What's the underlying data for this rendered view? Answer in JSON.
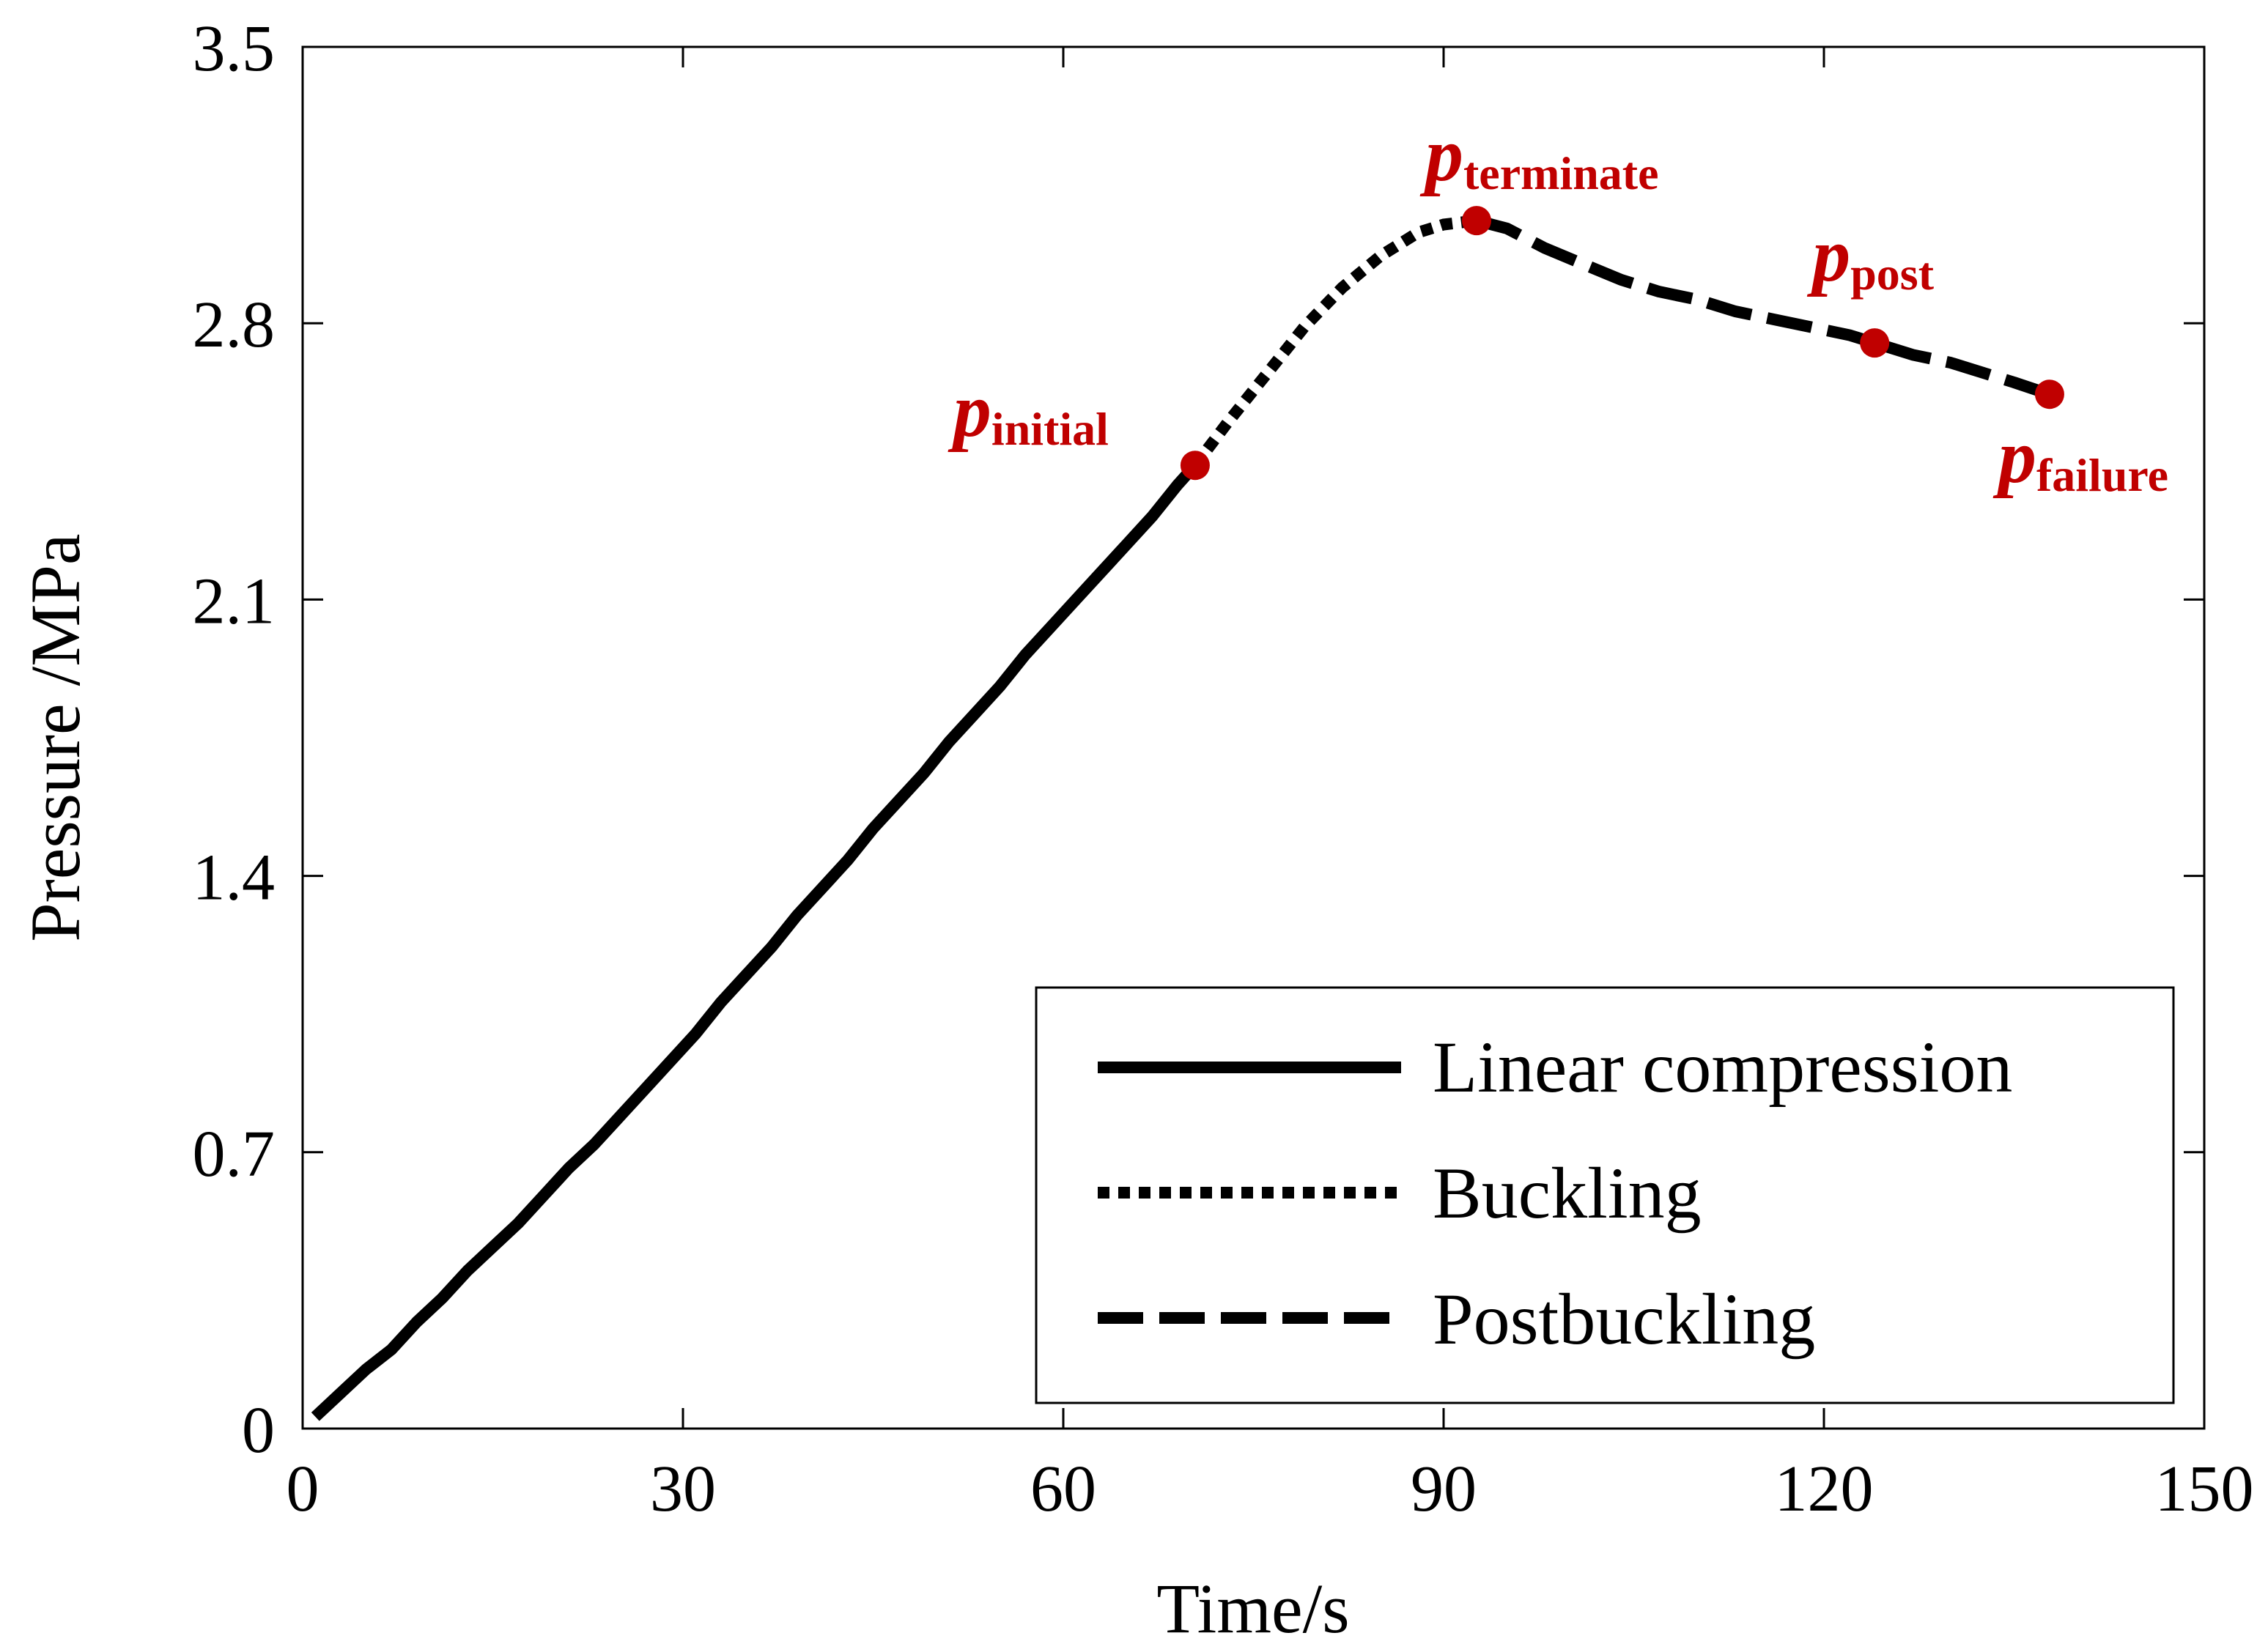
{
  "chart_data": {
    "type": "line",
    "title": "",
    "xlabel": "Time/s",
    "ylabel": "Pressure /MPa",
    "xlim": [
      0,
      150
    ],
    "ylim": [
      0,
      3.5
    ],
    "x_ticks": [
      "0",
      "30",
      "60",
      "90",
      "120",
      "150"
    ],
    "y_ticks": [
      "0",
      "0.7",
      "1.4",
      "2.1",
      "2.8",
      "3.5"
    ],
    "legend_position": "bottom-right",
    "series": [
      {
        "name": "Linear compression",
        "style": "solid",
        "x": [
          1,
          3,
          5,
          7,
          9,
          11,
          13,
          15,
          17,
          19,
          21,
          23,
          25,
          27,
          29,
          31,
          33,
          35,
          37,
          39,
          41,
          43,
          45,
          47,
          49,
          51,
          53,
          55,
          57,
          59,
          61,
          63,
          65,
          67,
          69,
          70.4
        ],
        "y": [
          0.03,
          0.09,
          0.15,
          0.2,
          0.27,
          0.33,
          0.4,
          0.46,
          0.52,
          0.59,
          0.66,
          0.72,
          0.79,
          0.86,
          0.93,
          1.0,
          1.08,
          1.15,
          1.22,
          1.3,
          1.37,
          1.44,
          1.52,
          1.59,
          1.66,
          1.74,
          1.81,
          1.88,
          1.96,
          2.03,
          2.1,
          2.17,
          2.24,
          2.31,
          2.39,
          2.44
        ]
      },
      {
        "name": "Buckling",
        "style": "dotted",
        "x": [
          70.4,
          73,
          76,
          79,
          82,
          85,
          88,
          90,
          92.6
        ],
        "y": [
          2.44,
          2.55,
          2.67,
          2.79,
          2.89,
          2.97,
          3.03,
          3.05,
          3.06
        ]
      },
      {
        "name": "Postbuckling",
        "style": "dashed",
        "x": [
          92.6,
          95,
          98,
          101,
          104,
          107,
          110,
          113,
          116,
          119,
          122,
          124,
          127,
          130,
          133,
          135,
          137.8
        ],
        "y": [
          3.06,
          3.04,
          2.99,
          2.95,
          2.91,
          2.88,
          2.86,
          2.83,
          2.81,
          2.79,
          2.77,
          2.75,
          2.72,
          2.7,
          2.67,
          2.65,
          2.62
        ]
      }
    ],
    "annotations": [
      {
        "main": "p",
        "sub": "initial",
        "x": 70.4,
        "y": 2.44,
        "color": "#c00000"
      },
      {
        "main": "p",
        "sub": "terminate",
        "x": 92.6,
        "y": 3.06,
        "color": "#c00000"
      },
      {
        "main": "p",
        "sub": "post",
        "x": 124,
        "y": 2.75,
        "color": "#c00000"
      },
      {
        "main": "p",
        "sub": "failure",
        "x": 137.8,
        "y": 2.62,
        "color": "#c00000"
      }
    ]
  }
}
